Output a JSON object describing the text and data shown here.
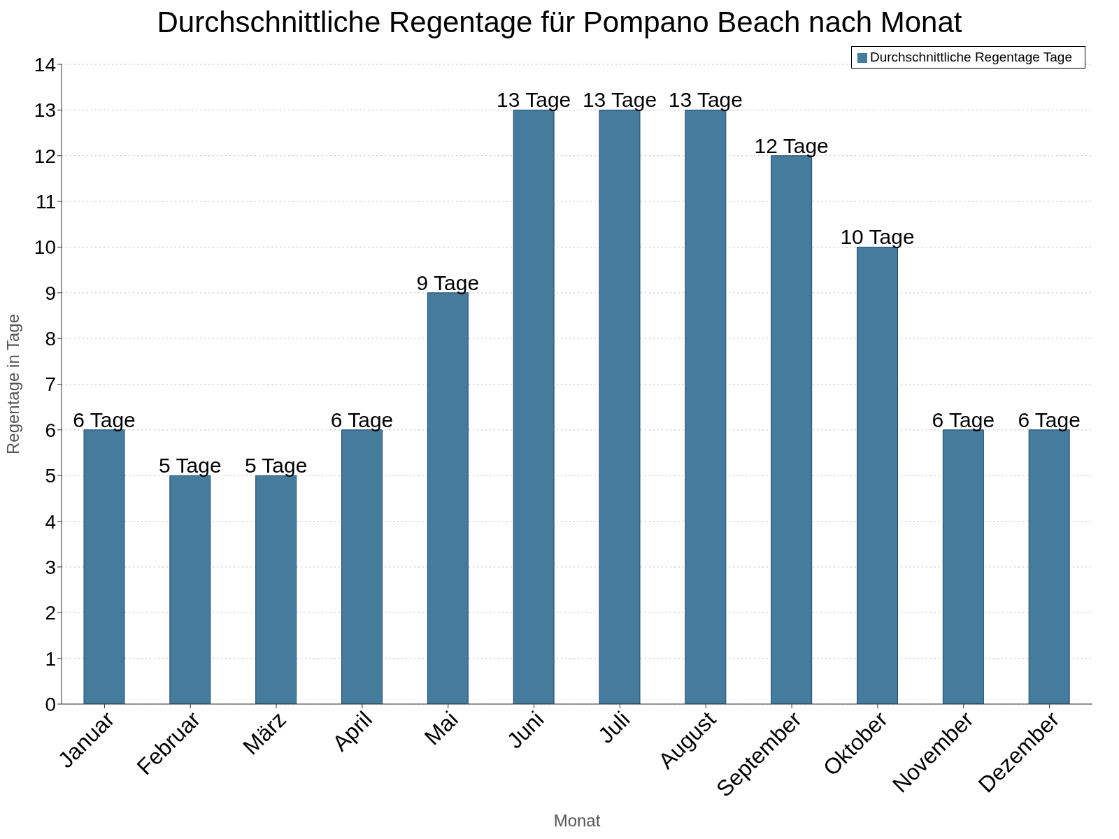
{
  "chart_data": {
    "type": "bar",
    "title": "Durchschnittliche Regentage für Pompano Beach nach Monat",
    "xlabel": "Monat",
    "ylabel": "Regentage in Tage",
    "categories": [
      "Januar",
      "Februar",
      "März",
      "April",
      "Mai",
      "Juni",
      "Juli",
      "August",
      "September",
      "Oktober",
      "November",
      "Dezember"
    ],
    "series": [
      {
        "name": "Durchschnittliche Regentage Tage",
        "color": "#457b9d",
        "values": [
          6,
          5,
          5,
          6,
          9,
          13,
          13,
          13,
          12,
          10,
          6,
          6
        ],
        "value_labels": [
          "6 Tage",
          "5 Tage",
          "5 Tage",
          "6 Tage",
          "9 Tage",
          "13 Tage",
          "13 Tage",
          "13 Tage",
          "12 Tage",
          "10 Tage",
          "6 Tage",
          "6 Tage"
        ]
      }
    ],
    "ylim": [
      0,
      14
    ],
    "yticks": [
      0,
      1,
      2,
      3,
      4,
      5,
      6,
      7,
      8,
      9,
      10,
      11,
      12,
      13,
      14
    ],
    "grid": "y",
    "legend": "top right"
  }
}
